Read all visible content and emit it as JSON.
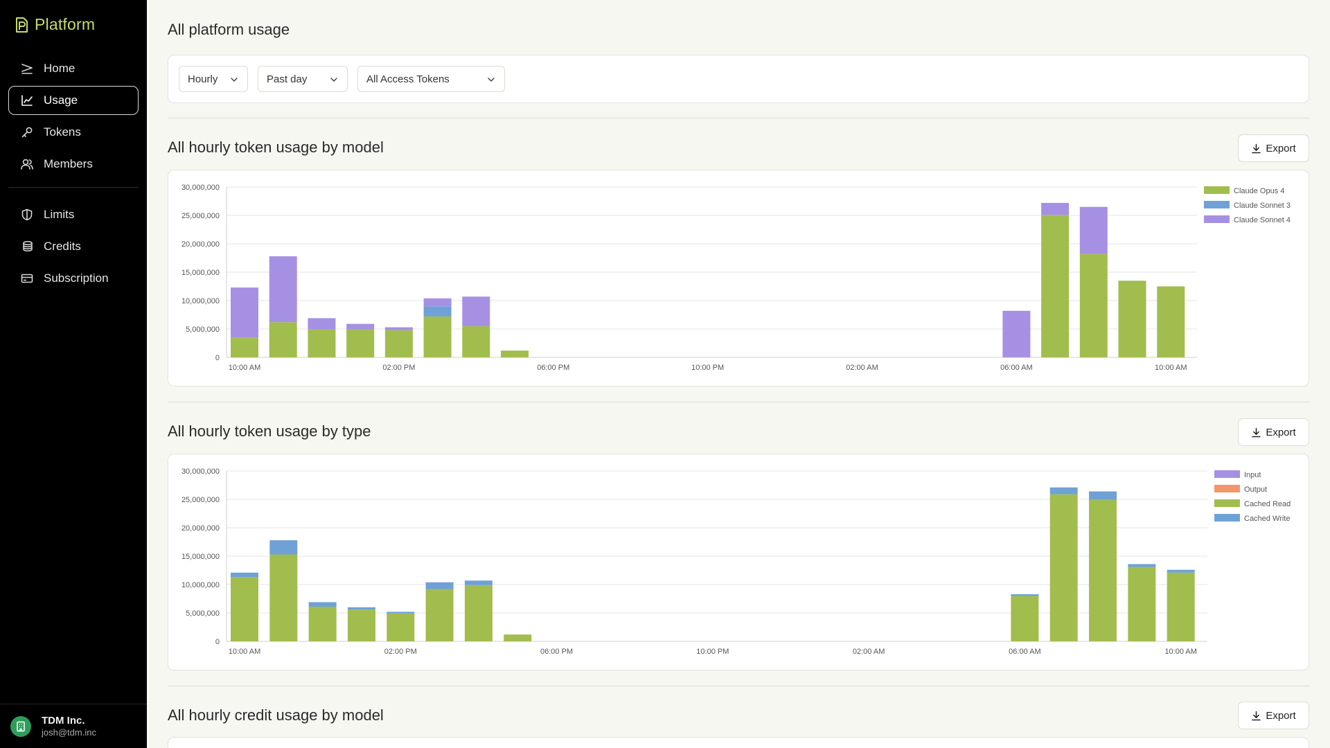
{
  "app": {
    "name": "Platform"
  },
  "sidebar": {
    "items": [
      {
        "label": "Home",
        "icon": "home-icon"
      },
      {
        "label": "Usage",
        "icon": "chart-line-icon",
        "active": true
      },
      {
        "label": "Tokens",
        "icon": "key-icon"
      },
      {
        "label": "Members",
        "icon": "users-icon"
      },
      {
        "label": "Limits",
        "icon": "shield-icon"
      },
      {
        "label": "Credits",
        "icon": "coins-icon"
      },
      {
        "label": "Subscription",
        "icon": "card-icon"
      }
    ],
    "org": {
      "name": "TDM Inc.",
      "email": "josh@tdm.inc"
    }
  },
  "page": {
    "title": "All platform usage"
  },
  "filters": {
    "granularity": "Hourly",
    "range": "Past day",
    "tokens": "All Access Tokens"
  },
  "sections": {
    "model": {
      "title": "All hourly token usage by model",
      "export_label": "Export"
    },
    "type": {
      "title": "All hourly token usage by type",
      "export_label": "Export"
    },
    "credit": {
      "title": "All hourly credit usage by model",
      "export_label": "Export"
    }
  },
  "chart_data": [
    {
      "type": "bar",
      "stacked": true,
      "title": "All hourly token usage by model",
      "categories": [
        "10:00 AM",
        "11:00 AM",
        "12:00 PM",
        "01:00 PM",
        "02:00 PM",
        "03:00 PM",
        "04:00 PM",
        "05:00 PM",
        "06:00 PM",
        "07:00 PM",
        "08:00 PM",
        "09:00 PM",
        "10:00 PM",
        "11:00 PM",
        "12:00 AM",
        "01:00 AM",
        "02:00 AM",
        "03:00 AM",
        "04:00 AM",
        "05:00 AM",
        "06:00 AM",
        "07:00 AM",
        "08:00 AM",
        "09:00 AM",
        "10:00 AM"
      ],
      "tick_labels": [
        "10:00 AM",
        "02:00 PM",
        "06:00 PM",
        "10:00 PM",
        "02:00 AM",
        "06:00 AM",
        "10:00 AM"
      ],
      "ylim": [
        0,
        30000000
      ],
      "yticks": [
        "0",
        "5,000,000",
        "10,000,000",
        "15,000,000",
        "20,000,000",
        "25,000,000",
        "30,000,000"
      ],
      "legend_position": "top-right",
      "grid": true,
      "series": [
        {
          "name": "Claude Opus 4",
          "color": "#a1bd4e",
          "values": [
            3500000,
            6200000,
            4900000,
            5000000,
            4800000,
            7200000,
            5500000,
            1200000,
            0,
            0,
            0,
            0,
            0,
            0,
            0,
            0,
            0,
            0,
            0,
            0,
            0,
            25100000,
            18200000,
            13500000,
            12500000
          ]
        },
        {
          "name": "Claude Sonnet 3",
          "color": "#6fa1d6",
          "values": [
            0,
            0,
            0,
            0,
            0,
            1800000,
            0,
            0,
            0,
            0,
            0,
            0,
            0,
            0,
            0,
            0,
            0,
            0,
            0,
            0,
            0,
            0,
            0,
            0,
            0
          ]
        },
        {
          "name": "Claude Sonnet 4",
          "color": "#a690e3",
          "values": [
            8800000,
            11600000,
            2000000,
            900000,
            500000,
            1400000,
            5200000,
            0,
            0,
            0,
            0,
            0,
            0,
            0,
            0,
            0,
            0,
            0,
            0,
            0,
            8200000,
            2100000,
            8300000,
            0,
            0
          ]
        }
      ]
    },
    {
      "type": "bar",
      "stacked": true,
      "title": "All hourly token usage by type",
      "categories": [
        "10:00 AM",
        "11:00 AM",
        "12:00 PM",
        "01:00 PM",
        "02:00 PM",
        "03:00 PM",
        "04:00 PM",
        "05:00 PM",
        "06:00 PM",
        "07:00 PM",
        "08:00 PM",
        "09:00 PM",
        "10:00 PM",
        "11:00 PM",
        "12:00 AM",
        "01:00 AM",
        "02:00 AM",
        "03:00 AM",
        "04:00 AM",
        "05:00 AM",
        "06:00 AM",
        "07:00 AM",
        "08:00 AM",
        "09:00 AM",
        "10:00 AM"
      ],
      "tick_labels": [
        "10:00 AM",
        "02:00 PM",
        "06:00 PM",
        "10:00 PM",
        "02:00 AM",
        "06:00 AM",
        "10:00 AM"
      ],
      "ylim": [
        0,
        30000000
      ],
      "yticks": [
        "0",
        "5,000,000",
        "10,000,000",
        "15,000,000",
        "20,000,000",
        "25,000,000",
        "30,000,000"
      ],
      "legend_position": "top-right",
      "grid": true,
      "series": [
        {
          "name": "Input",
          "color": "#a690e3",
          "values": [
            0,
            0,
            0,
            0,
            0,
            0,
            0,
            0,
            0,
            0,
            0,
            0,
            0,
            0,
            0,
            0,
            0,
            0,
            0,
            0,
            0,
            0,
            0,
            0,
            0
          ]
        },
        {
          "name": "Output",
          "color": "#f4956a",
          "values": [
            0,
            0,
            0,
            0,
            0,
            0,
            0,
            0,
            0,
            0,
            0,
            0,
            0,
            0,
            0,
            0,
            0,
            0,
            0,
            0,
            0,
            0,
            0,
            0,
            0
          ]
        },
        {
          "name": "Cached Read",
          "color": "#a1bd4e",
          "values": [
            11300000,
            15300000,
            6100000,
            5600000,
            4900000,
            9200000,
            9900000,
            1200000,
            0,
            0,
            0,
            0,
            0,
            0,
            0,
            0,
            0,
            0,
            0,
            0,
            8000000,
            25900000,
            24900000,
            13100000,
            12100000
          ]
        },
        {
          "name": "Cached Write",
          "color": "#6fa1d6",
          "values": [
            800000,
            2500000,
            800000,
            400000,
            300000,
            1200000,
            800000,
            0,
            0,
            0,
            0,
            0,
            0,
            0,
            0,
            0,
            0,
            0,
            0,
            0,
            300000,
            1200000,
            1500000,
            500000,
            500000
          ]
        }
      ]
    }
  ]
}
